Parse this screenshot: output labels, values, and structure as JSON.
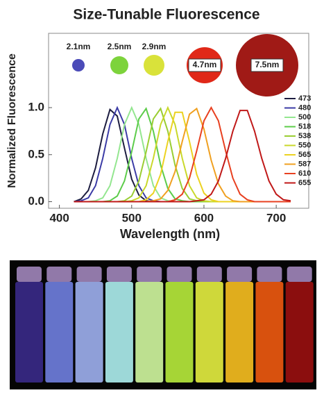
{
  "chart_data": {
    "type": "line",
    "title": "Size-Tunable Fluorescence",
    "xlabel": "Wavelength (nm)",
    "ylabel": "Normalized Fluorescence",
    "annotations": [
      "2.1nm",
      "2.5nm",
      "2.9nm",
      "4.7nm",
      "7.5nm"
    ],
    "x": [
      420,
      430,
      440,
      450,
      460,
      470,
      480,
      490,
      500,
      510,
      520,
      530,
      540,
      550,
      560,
      570,
      580,
      590,
      600,
      610,
      620,
      630,
      640,
      650,
      660,
      670,
      680,
      690,
      700,
      710,
      720
    ],
    "series": [
      {
        "name": "473",
        "color": "#1c1c40",
        "values": [
          0,
          0.03,
          0.12,
          0.36,
          0.72,
          0.98,
          0.91,
          0.57,
          0.24,
          0.07,
          0.01,
          0,
          0,
          0,
          0,
          0,
          0,
          0,
          0,
          0,
          0,
          0,
          0,
          0,
          0,
          0,
          0,
          0,
          0,
          0,
          0
        ]
      },
      {
        "name": "480",
        "color": "#3b3ba6",
        "values": [
          0,
          0.01,
          0.04,
          0.17,
          0.46,
          0.82,
          1,
          0.82,
          0.46,
          0.17,
          0.04,
          0.01,
          0,
          0,
          0,
          0,
          0,
          0,
          0,
          0,
          0,
          0,
          0,
          0,
          0,
          0,
          0,
          0,
          0,
          0,
          0
        ]
      },
      {
        "name": "500",
        "color": "#93e68f",
        "values": [
          0,
          0,
          0,
          0.01,
          0.04,
          0.17,
          0.46,
          0.82,
          1,
          0.82,
          0.46,
          0.17,
          0.04,
          0.01,
          0,
          0,
          0,
          0,
          0,
          0,
          0,
          0,
          0,
          0,
          0,
          0,
          0,
          0,
          0,
          0,
          0
        ]
      },
      {
        "name": "518",
        "color": "#5ccc4a",
        "values": [
          0,
          0,
          0,
          0,
          0,
          0.01,
          0.06,
          0.22,
          0.53,
          0.88,
          0.99,
          0.75,
          0.39,
          0.14,
          0.03,
          0.01,
          0,
          0,
          0,
          0,
          0,
          0,
          0,
          0,
          0,
          0,
          0,
          0,
          0,
          0,
          0
        ]
      },
      {
        "name": "538",
        "color": "#9acd32",
        "values": [
          0,
          0,
          0,
          0,
          0,
          0,
          0,
          0.01,
          0.06,
          0.22,
          0.53,
          0.88,
          0.99,
          0.75,
          0.39,
          0.14,
          0.03,
          0.01,
          0,
          0,
          0,
          0,
          0,
          0,
          0,
          0,
          0,
          0,
          0,
          0,
          0
        ]
      },
      {
        "name": "550",
        "color": "#c9d82a",
        "values": [
          0,
          0,
          0,
          0,
          0,
          0,
          0,
          0,
          0.01,
          0.04,
          0.17,
          0.46,
          0.82,
          1,
          0.82,
          0.46,
          0.17,
          0.04,
          0.01,
          0,
          0,
          0,
          0,
          0,
          0,
          0,
          0,
          0,
          0,
          0,
          0
        ]
      },
      {
        "name": "565",
        "color": "#ecd220",
        "values": [
          0,
          0,
          0,
          0,
          0,
          0,
          0,
          0,
          0,
          0,
          0.02,
          0.09,
          0.29,
          0.64,
          0.95,
          0.95,
          0.64,
          0.29,
          0.09,
          0.02,
          0,
          0,
          0,
          0,
          0,
          0,
          0,
          0,
          0,
          0,
          0
        ]
      },
      {
        "name": "587",
        "color": "#f0a020",
        "values": [
          0,
          0,
          0,
          0,
          0,
          0,
          0,
          0,
          0,
          0,
          0,
          0.01,
          0.03,
          0.12,
          0.32,
          0.64,
          0.93,
          0.99,
          0.77,
          0.44,
          0.19,
          0.06,
          0.01,
          0,
          0,
          0,
          0,
          0,
          0,
          0,
          0
        ]
      },
      {
        "name": "610",
        "color": "#e84020",
        "values": [
          0,
          0,
          0,
          0,
          0,
          0,
          0,
          0,
          0,
          0,
          0,
          0,
          0,
          0,
          0.02,
          0.08,
          0.25,
          0.54,
          0.86,
          1,
          0.86,
          0.54,
          0.25,
          0.08,
          0.02,
          0,
          0,
          0,
          0,
          0,
          0
        ]
      },
      {
        "name": "655",
        "color": "#c01818",
        "values": [
          0,
          0,
          0,
          0,
          0,
          0,
          0,
          0,
          0,
          0,
          0,
          0,
          0,
          0,
          0,
          0,
          0,
          0.01,
          0.02,
          0.08,
          0.22,
          0.46,
          0.75,
          0.97,
          0.97,
          0.75,
          0.46,
          0.22,
          0.08,
          0.02,
          0.01
        ]
      }
    ],
    "xlim": [
      385,
      745
    ],
    "xticks": [
      400,
      500,
      600,
      700
    ],
    "ylim": [
      -0.07,
      1.79
    ],
    "yticks": [
      {
        "value": 0,
        "label": "0.0"
      },
      {
        "value": 0.5,
        "label": "0.5"
      },
      {
        "value": 1,
        "label": "1.0"
      }
    ],
    "grid": false,
    "legend": "right"
  }
}
